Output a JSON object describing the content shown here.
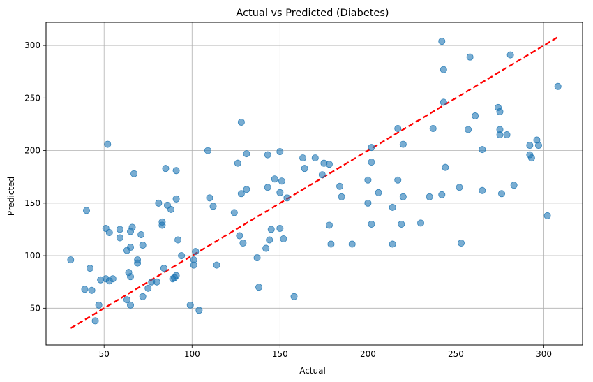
{
  "chart_data": {
    "type": "scatter",
    "title": "Actual vs Predicted (Diabetes)",
    "xlabel": "Actual",
    "ylabel": "Predicted",
    "xlim": [
      17,
      322
    ],
    "ylim": [
      15,
      322
    ],
    "xticks": [
      50,
      100,
      150,
      200,
      250,
      300
    ],
    "yticks": [
      50,
      100,
      150,
      200,
      250,
      300
    ],
    "grid": true,
    "point_color": "#1f77b4",
    "point_alpha": 0.6,
    "reference_line": {
      "style": "dashed",
      "color": "#ff0000",
      "x": [
        31,
        308
      ],
      "y": [
        31,
        308
      ]
    },
    "points": [
      [
        31,
        96
      ],
      [
        39,
        68
      ],
      [
        40,
        143
      ],
      [
        42,
        88
      ],
      [
        43,
        67
      ],
      [
        45,
        38
      ],
      [
        47,
        53
      ],
      [
        48,
        77
      ],
      [
        51,
        78
      ],
      [
        51,
        126
      ],
      [
        52,
        206
      ],
      [
        53,
        76
      ],
      [
        53,
        122
      ],
      [
        55,
        78
      ],
      [
        59,
        117
      ],
      [
        59,
        125
      ],
      [
        63,
        58
      ],
      [
        63,
        105
      ],
      [
        64,
        84
      ],
      [
        65,
        123
      ],
      [
        65,
        108
      ],
      [
        65,
        80
      ],
      [
        65,
        53
      ],
      [
        66,
        127
      ],
      [
        67,
        178
      ],
      [
        69,
        96
      ],
      [
        69,
        93
      ],
      [
        71,
        120
      ],
      [
        72,
        61
      ],
      [
        72,
        110
      ],
      [
        75,
        69
      ],
      [
        77,
        75
      ],
      [
        80,
        75
      ],
      [
        81,
        150
      ],
      [
        83,
        132
      ],
      [
        83,
        129
      ],
      [
        84,
        88
      ],
      [
        85,
        183
      ],
      [
        86,
        148
      ],
      [
        88,
        144
      ],
      [
        89,
        78
      ],
      [
        90,
        79
      ],
      [
        91,
        81
      ],
      [
        91,
        181
      ],
      [
        91,
        154
      ],
      [
        92,
        115
      ],
      [
        94,
        100
      ],
      [
        99,
        53
      ],
      [
        101,
        91
      ],
      [
        101,
        96
      ],
      [
        102,
        104
      ],
      [
        104,
        48
      ],
      [
        109,
        200
      ],
      [
        110,
        155
      ],
      [
        112,
        147
      ],
      [
        114,
        91
      ],
      [
        124,
        141
      ],
      [
        126,
        188
      ],
      [
        127,
        119
      ],
      [
        128,
        159
      ],
      [
        128,
        227
      ],
      [
        129,
        112
      ],
      [
        131,
        163
      ],
      [
        131,
        197
      ],
      [
        137,
        98
      ],
      [
        138,
        70
      ],
      [
        142,
        107
      ],
      [
        143,
        165
      ],
      [
        143,
        196
      ],
      [
        144,
        115
      ],
      [
        145,
        125
      ],
      [
        147,
        173
      ],
      [
        150,
        199
      ],
      [
        150,
        126
      ],
      [
        150,
        160
      ],
      [
        151,
        171
      ],
      [
        152,
        116
      ],
      [
        154,
        155
      ],
      [
        158,
        61
      ],
      [
        163,
        193
      ],
      [
        164,
        183
      ],
      [
        170,
        193
      ],
      [
        174,
        177
      ],
      [
        175,
        188
      ],
      [
        178,
        187
      ],
      [
        178,
        129
      ],
      [
        179,
        111
      ],
      [
        184,
        166
      ],
      [
        185,
        156
      ],
      [
        191,
        111
      ],
      [
        200,
        172
      ],
      [
        200,
        150
      ],
      [
        202,
        203
      ],
      [
        202,
        189
      ],
      [
        202,
        130
      ],
      [
        206,
        160
      ],
      [
        214,
        146
      ],
      [
        214,
        111
      ],
      [
        217,
        221
      ],
      [
        217,
        172
      ],
      [
        219,
        130
      ],
      [
        220,
        156
      ],
      [
        220,
        206
      ],
      [
        230,
        131
      ],
      [
        235,
        156
      ],
      [
        237,
        221
      ],
      [
        242,
        304
      ],
      [
        242,
        158
      ],
      [
        243,
        277
      ],
      [
        243,
        246
      ],
      [
        244,
        184
      ],
      [
        252,
        165
      ],
      [
        253,
        112
      ],
      [
        257,
        220
      ],
      [
        258,
        289
      ],
      [
        261,
        233
      ],
      [
        265,
        201
      ],
      [
        265,
        162
      ],
      [
        274,
        241
      ],
      [
        275,
        215
      ],
      [
        275,
        220
      ],
      [
        275,
        237
      ],
      [
        276,
        159
      ],
      [
        279,
        215
      ],
      [
        281,
        291
      ],
      [
        283,
        167
      ],
      [
        292,
        205
      ],
      [
        292,
        196
      ],
      [
        293,
        193
      ],
      [
        296,
        210
      ],
      [
        297,
        205
      ],
      [
        302,
        138
      ],
      [
        308,
        261
      ]
    ]
  }
}
